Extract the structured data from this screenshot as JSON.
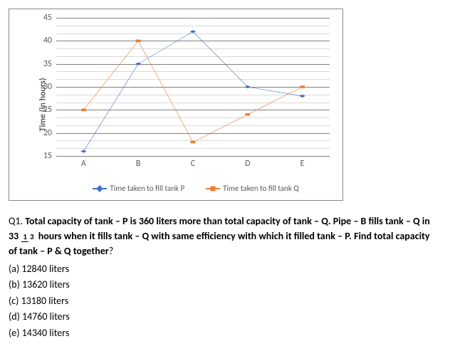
{
  "chart": {
    "type": "line",
    "ylabel": "Time (in hours)",
    "categories": [
      "A",
      "B",
      "C",
      "D",
      "E"
    ],
    "ylim": [
      15,
      45
    ],
    "yticks": [
      15,
      20,
      25,
      30,
      35,
      40,
      45
    ],
    "grid_minor_count": 2,
    "series": [
      {
        "name": "Time taken to fill tank P",
        "color": "#4472c4",
        "marker": "diamond",
        "values": [
          16,
          35,
          42,
          30,
          28
        ]
      },
      {
        "name": "Time taken to fill tank Q",
        "color": "#ed7d31",
        "marker": "square",
        "values": [
          25,
          40,
          18,
          24,
          30
        ]
      }
    ],
    "label_fontsize": 12,
    "background_color": "#ffffff"
  },
  "question": {
    "number": "Q1.",
    "text_before_frac": "Total capacity of tank – P is 360 liters more than total capacity of tank – Q. Pipe – B fills tank – Q in 33",
    "frac_num": "1",
    "frac_den": "3",
    "text_after_frac": "hours when it fills tank – Q with same efficiency with which it filled tank – P. Find total capacity of tank – P & Q together",
    "qmark": "?",
    "options": [
      "(a) 12840 liters",
      "(b) 13620 liters",
      "(c) 13180 liters",
      "(d) 14760 liters",
      "(e) 14340 liters"
    ]
  }
}
